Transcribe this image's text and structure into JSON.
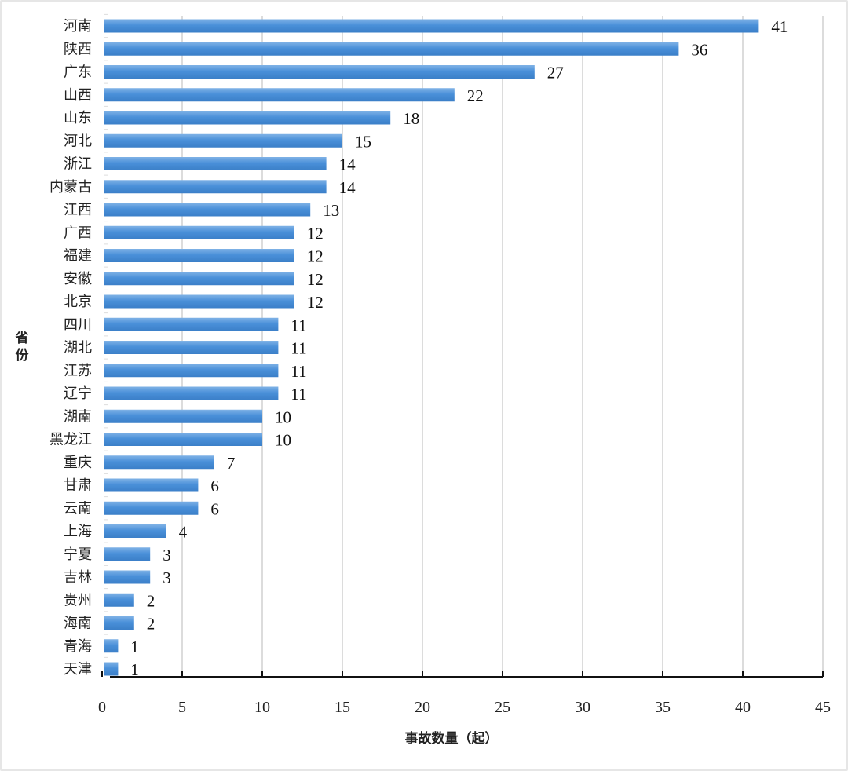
{
  "chart_data": {
    "type": "bar",
    "orientation": "horizontal",
    "categories": [
      "河南",
      "陕西",
      "广东",
      "山西",
      "山东",
      "河北",
      "浙江",
      "内蒙古",
      "江西",
      "广西",
      "福建",
      "安徽",
      "北京",
      "四川",
      "湖北",
      "江苏",
      "辽宁",
      "湖南",
      "黑龙江",
      "重庆",
      "甘肃",
      "云南",
      "上海",
      "宁夏",
      "吉林",
      "贵州",
      "海南",
      "青海",
      "天津"
    ],
    "values": [
      41,
      36,
      27,
      22,
      18,
      15,
      14,
      14,
      13,
      12,
      12,
      12,
      12,
      11,
      11,
      11,
      11,
      10,
      10,
      7,
      6,
      6,
      4,
      3,
      3,
      2,
      2,
      1,
      1
    ],
    "data_labels": true,
    "xlabel": "事故数量（起）",
    "ylabel": "省份",
    "xlim": [
      0,
      45
    ],
    "xticks": [
      0,
      5,
      10,
      15,
      20,
      25,
      30,
      35,
      40,
      45
    ],
    "grid": "vertical",
    "legend": "none",
    "bar_color": "#4a90d9"
  }
}
